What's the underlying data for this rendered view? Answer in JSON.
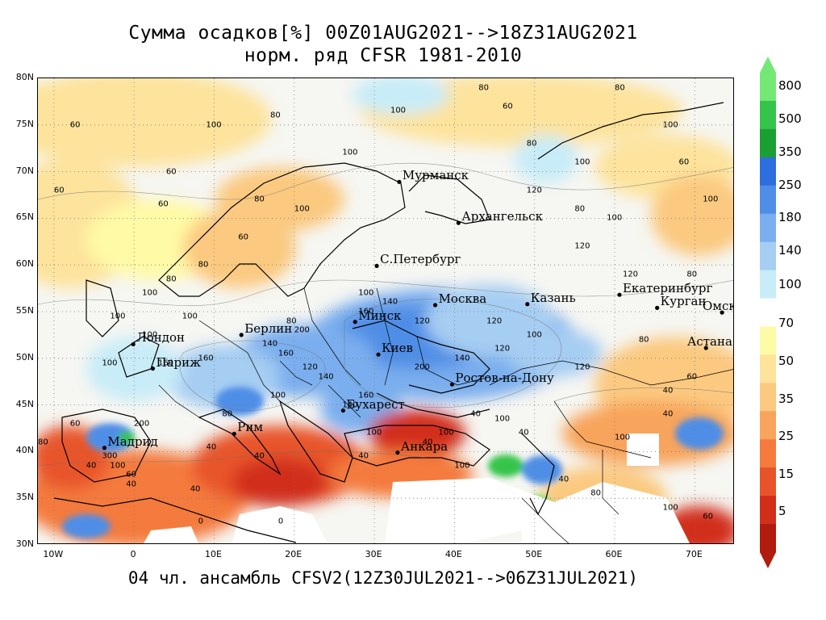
{
  "title_line1": "Сумма осадков[%] 00Z01AUG2021-->18Z31AUG2021",
  "title_line2": "норм. ряд CFSR 1981-2010",
  "caption": "04 чл. ансамбль CFSV2(12Z30JUL2021-->06Z31JUL2021)",
  "map": {
    "lon_range": [
      -12,
      75
    ],
    "lat_range": [
      30,
      80
    ],
    "lat_ticks": [
      "80N",
      "75N",
      "70N",
      "65N",
      "60N",
      "55N",
      "50N",
      "45N",
      "40N",
      "35N",
      "30N"
    ],
    "lon_ticks": [
      "10W",
      "0",
      "10E",
      "20E",
      "30E",
      "40E",
      "50E",
      "60E",
      "70E"
    ],
    "cities": [
      {
        "name": "Мурманск",
        "lon": 33.1,
        "lat": 68.9
      },
      {
        "name": "Архангельск",
        "lon": 40.5,
        "lat": 64.5
      },
      {
        "name": "С.Петербург",
        "lon": 30.3,
        "lat": 59.9
      },
      {
        "name": "Москва",
        "lon": 37.6,
        "lat": 55.7
      },
      {
        "name": "Казань",
        "lon": 49.1,
        "lat": 55.8
      },
      {
        "name": "Екатеринбург",
        "lon": 60.6,
        "lat": 56.8
      },
      {
        "name": "Курган",
        "lon": 65.3,
        "lat": 55.4
      },
      {
        "name": "Омск",
        "lon": 73.4,
        "lat": 54.9
      },
      {
        "name": "Астана",
        "lon": 71.4,
        "lat": 51.1
      },
      {
        "name": "Минск",
        "lon": 27.6,
        "lat": 53.9
      },
      {
        "name": "Киев",
        "lon": 30.5,
        "lat": 50.4
      },
      {
        "name": "Ростов-на-Дону",
        "lon": 39.7,
        "lat": 47.2
      },
      {
        "name": "Берлин",
        "lon": 13.4,
        "lat": 52.5
      },
      {
        "name": "Лондон",
        "lon": -0.1,
        "lat": 51.5
      },
      {
        "name": "Париж",
        "lon": 2.35,
        "lat": 48.9
      },
      {
        "name": "Рим",
        "lon": 12.5,
        "lat": 41.9
      },
      {
        "name": "Мадрид",
        "lon": -3.7,
        "lat": 40.4
      },
      {
        "name": "Бухарест",
        "lon": 26.1,
        "lat": 44.4
      },
      {
        "name": "Анкара",
        "lon": 32.9,
        "lat": 39.9
      }
    ],
    "contour_labels": [
      {
        "text": "80",
        "lon": 60,
        "lat": 79
      },
      {
        "text": "100",
        "lon": 32,
        "lat": 76.5
      },
      {
        "text": "80",
        "lon": 43,
        "lat": 79
      },
      {
        "text": "60",
        "lon": 46,
        "lat": 77
      },
      {
        "text": "80",
        "lon": 17,
        "lat": 76
      },
      {
        "text": "100",
        "lon": 9,
        "lat": 75
      },
      {
        "text": "60",
        "lon": -8,
        "lat": 75
      },
      {
        "text": "60",
        "lon": 4,
        "lat": 70
      },
      {
        "text": "60",
        "lon": -10,
        "lat": 68
      },
      {
        "text": "60",
        "lon": 3,
        "lat": 66.5
      },
      {
        "text": "80",
        "lon": 15,
        "lat": 67
      },
      {
        "text": "100",
        "lon": 26,
        "lat": 72
      },
      {
        "text": "80",
        "lon": 49,
        "lat": 73
      },
      {
        "text": "100",
        "lon": 55,
        "lat": 71
      },
      {
        "text": "100",
        "lon": 66,
        "lat": 75
      },
      {
        "text": "60",
        "lon": 68,
        "lat": 71
      },
      {
        "text": "80",
        "lon": 55,
        "lat": 66
      },
      {
        "text": "100",
        "lon": 59,
        "lat": 65
      },
      {
        "text": "120",
        "lon": 49,
        "lat": 68
      },
      {
        "text": "100",
        "lon": 71,
        "lat": 67
      },
      {
        "text": "120",
        "lon": 55,
        "lat": 62
      },
      {
        "text": "120",
        "lon": 61,
        "lat": 59
      },
      {
        "text": "80",
        "lon": 69,
        "lat": 59
      },
      {
        "text": "100",
        "lon": 20,
        "lat": 66
      },
      {
        "text": "60",
        "lon": 13,
        "lat": 63
      },
      {
        "text": "80",
        "lon": 8,
        "lat": 60
      },
      {
        "text": "100",
        "lon": 1,
        "lat": 57
      },
      {
        "text": "100",
        "lon": 6,
        "lat": 54.5
      },
      {
        "text": "100",
        "lon": 28,
        "lat": 57
      },
      {
        "text": "140",
        "lon": 31,
        "lat": 56
      },
      {
        "text": "160",
        "lon": 28,
        "lat": 55
      },
      {
        "text": "120",
        "lon": 35,
        "lat": 54
      },
      {
        "text": "120",
        "lon": 44,
        "lat": 54
      },
      {
        "text": "100",
        "lon": 49,
        "lat": 52.5
      },
      {
        "text": "120",
        "lon": 55,
        "lat": 49
      },
      {
        "text": "80",
        "lon": 63,
        "lat": 52
      },
      {
        "text": "60",
        "lon": 69,
        "lat": 48
      },
      {
        "text": "40",
        "lon": 66,
        "lat": 46.5
      },
      {
        "text": "40",
        "lon": 66,
        "lat": 44
      },
      {
        "text": "200",
        "lon": 20,
        "lat": 53
      },
      {
        "text": "140",
        "lon": 16,
        "lat": 51.5
      },
      {
        "text": "160",
        "lon": 18,
        "lat": 50.5
      },
      {
        "text": "120",
        "lon": 21,
        "lat": 49
      },
      {
        "text": "140",
        "lon": 23,
        "lat": 48
      },
      {
        "text": "160",
        "lon": 8,
        "lat": 50
      },
      {
        "text": "100",
        "lon": -4,
        "lat": 49.5
      },
      {
        "text": "100",
        "lon": 17,
        "lat": 46
      },
      {
        "text": "140",
        "lon": 26,
        "lat": 45
      },
      {
        "text": "160",
        "lon": 28,
        "lat": 46
      },
      {
        "text": "200",
        "lon": 35,
        "lat": 49
      },
      {
        "text": "140",
        "lon": 40,
        "lat": 50
      },
      {
        "text": "120",
        "lon": 45,
        "lat": 51
      },
      {
        "text": "40",
        "lon": 42,
        "lat": 44
      },
      {
        "text": "100",
        "lon": 45,
        "lat": 43.5
      },
      {
        "text": "40",
        "lon": 48,
        "lat": 42
      },
      {
        "text": "100",
        "lon": 38,
        "lat": 42
      },
      {
        "text": "40",
        "lon": 36,
        "lat": 41
      },
      {
        "text": "40",
        "lon": 28,
        "lat": 39.5
      },
      {
        "text": "100",
        "lon": 29,
        "lat": 42
      },
      {
        "text": "100",
        "lon": 40,
        "lat": 38.5
      },
      {
        "text": "40",
        "lon": 53,
        "lat": 37
      },
      {
        "text": "80",
        "lon": 57,
        "lat": 35.5
      },
      {
        "text": "100",
        "lon": 66,
        "lat": 34
      },
      {
        "text": "60",
        "lon": 71,
        "lat": 33
      },
      {
        "text": "100",
        "lon": 60,
        "lat": 41.5
      },
      {
        "text": "40",
        "lon": 9,
        "lat": 40.5
      },
      {
        "text": "40",
        "lon": 15,
        "lat": 39.5
      },
      {
        "text": "300",
        "lon": -4,
        "lat": 39.5
      },
      {
        "text": "100",
        "lon": -3,
        "lat": 38.5
      },
      {
        "text": "40",
        "lon": -6,
        "lat": 38.5
      },
      {
        "text": "60",
        "lon": -1,
        "lat": 37.5
      },
      {
        "text": "40",
        "lon": -1,
        "lat": 36.5
      },
      {
        "text": "200",
        "lon": 0,
        "lat": 43
      },
      {
        "text": "60",
        "lon": -8,
        "lat": 43
      },
      {
        "text": "80",
        "lon": -12,
        "lat": 41
      },
      {
        "text": "40",
        "lon": 7,
        "lat": 36
      },
      {
        "text": "0",
        "lon": 18,
        "lat": 32.5
      },
      {
        "text": "0",
        "lon": 8,
        "lat": 32.5
      },
      {
        "text": "160",
        "lon": 3,
        "lat": 49.5
      },
      {
        "text": "100",
        "lon": 1,
        "lat": 52.5
      },
      {
        "text": "100",
        "lon": -3,
        "lat": 54.5
      },
      {
        "text": "80",
        "lon": 4,
        "lat": 58.5
      },
      {
        "text": "80",
        "lon": 19,
        "lat": 54
      },
      {
        "text": "80",
        "lon": 11,
        "lat": 44
      }
    ]
  },
  "legend": {
    "labels": [
      "800",
      "500",
      "350",
      "250",
      "180",
      "140",
      "100",
      "70",
      "50",
      "35",
      "25",
      "15",
      "5"
    ],
    "colors": [
      "#74e874",
      "#34c44a",
      "#1aa032",
      "#2e6fe0",
      "#4f8ee6",
      "#7aaeee",
      "#a6cdf2",
      "#c8ecf8",
      "#ffffff",
      "#fffaa6",
      "#fde39c",
      "#fbc980",
      "#f8a45c",
      "#f47a3e",
      "#e8542a",
      "#d22f1a",
      "#b01c0e"
    ]
  }
}
